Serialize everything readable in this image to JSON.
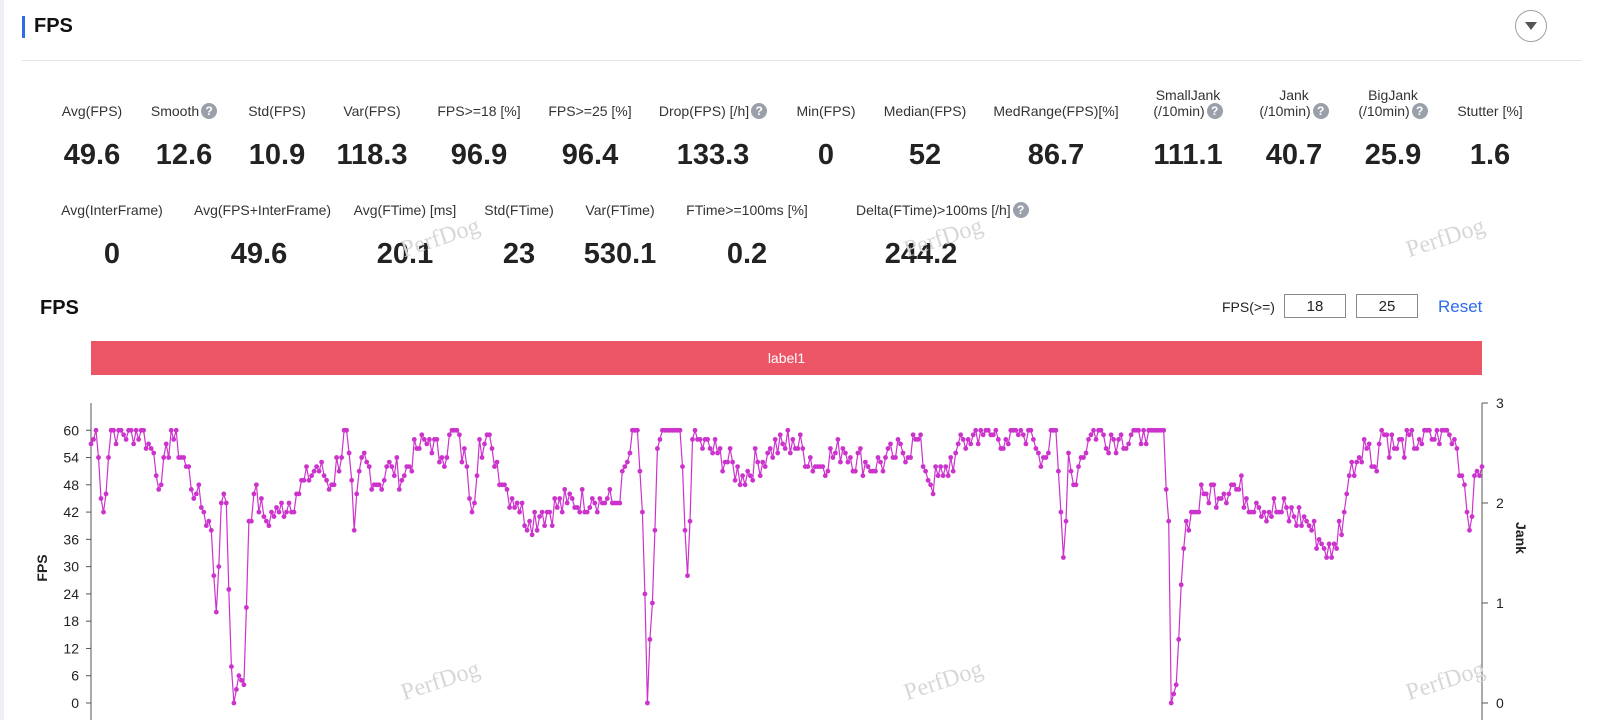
{
  "section": {
    "title": "FPS"
  },
  "metrics_row1": [
    {
      "label": "Avg(FPS)",
      "value": "49.6"
    },
    {
      "label": "Smooth",
      "value": "12.6",
      "help": true
    },
    {
      "label": "Std(FPS)",
      "value": "10.9"
    },
    {
      "label": "Var(FPS)",
      "value": "118.3"
    },
    {
      "label": "FPS>=18 [%]",
      "value": "96.9"
    },
    {
      "label": "FPS>=25 [%]",
      "value": "96.4"
    },
    {
      "label": "Drop(FPS) [/h]",
      "value": "133.3",
      "help": true
    },
    {
      "label": "Min(FPS)",
      "value": "0"
    },
    {
      "label": "Median(FPS)",
      "value": "52"
    },
    {
      "label": "MedRange(FPS)[%]",
      "value": "86.7"
    },
    {
      "label": "SmallJank",
      "label2": "(/10min)",
      "value": "111.1",
      "help": true
    },
    {
      "label": "Jank",
      "label2": "(/10min)",
      "value": "40.7",
      "help": true
    },
    {
      "label": "BigJank",
      "label2": "(/10min)",
      "value": "25.9",
      "help": true
    },
    {
      "label": "Stutter [%]",
      "value": "1.6"
    }
  ],
  "metrics_row2": [
    {
      "label": "Avg(InterFrame)",
      "value": "0"
    },
    {
      "label": "Avg(FPS+InterFrame)",
      "value": "49.6"
    },
    {
      "label": "Avg(FTime) [ms]",
      "value": "20.1"
    },
    {
      "label": "Std(FTime)",
      "value": "23"
    },
    {
      "label": "Var(FTime)",
      "value": "530.1"
    },
    {
      "label": "FTime>=100ms [%]",
      "value": "0.2"
    },
    {
      "label": "Delta(FTime)>100ms [/h]",
      "value": "244.2",
      "help": true
    }
  ],
  "help_glyph": "?",
  "watermark_text": "PerfDog",
  "chart_header": {
    "title": "FPS",
    "threshold_label": "FPS(>=)",
    "threshold_low": "18",
    "threshold_high": "25",
    "reset_label": "Reset",
    "label_bar": "label1",
    "label_bar_color": "#ec5566"
  },
  "chart_data": {
    "type": "line",
    "series_color": "#cc33cc",
    "y_left": {
      "label": "FPS",
      "ticks": [
        0,
        6,
        12,
        18,
        24,
        30,
        36,
        42,
        48,
        54,
        60
      ]
    },
    "y_right": {
      "label": "Jank",
      "ticks": [
        0,
        1,
        2,
        3
      ]
    },
    "keyframes": [
      [
        0,
        57
      ],
      [
        2,
        60
      ],
      [
        5,
        42
      ],
      [
        8,
        60
      ],
      [
        20,
        60
      ],
      [
        25,
        55
      ],
      [
        28,
        48
      ],
      [
        32,
        60
      ],
      [
        38,
        52
      ],
      [
        42,
        46
      ],
      [
        45,
        42
      ],
      [
        48,
        38
      ],
      [
        50,
        20
      ],
      [
        52,
        44
      ],
      [
        54,
        44
      ],
      [
        56,
        8
      ],
      [
        57,
        0
      ],
      [
        59,
        6
      ],
      [
        61,
        4
      ],
      [
        63,
        40
      ],
      [
        65,
        46
      ],
      [
        70,
        40
      ],
      [
        75,
        42
      ],
      [
        82,
        46
      ],
      [
        90,
        52
      ],
      [
        96,
        48
      ],
      [
        102,
        60
      ],
      [
        105,
        38
      ],
      [
        108,
        54
      ],
      [
        115,
        48
      ],
      [
        120,
        52
      ],
      [
        125,
        50
      ],
      [
        130,
        56
      ],
      [
        135,
        58
      ],
      [
        140,
        54
      ],
      [
        145,
        60
      ],
      [
        150,
        52
      ],
      [
        152,
        42
      ],
      [
        155,
        58
      ],
      [
        160,
        56
      ],
      [
        165,
        48
      ],
      [
        170,
        44
      ],
      [
        175,
        40
      ],
      [
        180,
        42
      ],
      [
        190,
        44
      ],
      [
        200,
        45
      ],
      [
        210,
        44
      ],
      [
        215,
        55
      ],
      [
        218,
        60
      ],
      [
        220,
        42
      ],
      [
        222,
        0
      ],
      [
        224,
        22
      ],
      [
        226,
        56
      ],
      [
        228,
        60
      ],
      [
        235,
        60
      ],
      [
        238,
        28
      ],
      [
        240,
        58
      ],
      [
        250,
        55
      ],
      [
        260,
        50
      ],
      [
        270,
        55
      ],
      [
        280,
        58
      ],
      [
        290,
        52
      ],
      [
        300,
        56
      ],
      [
        310,
        52
      ],
      [
        320,
        54
      ],
      [
        330,
        58
      ],
      [
        335,
        48
      ],
      [
        340,
        50
      ],
      [
        345,
        55
      ],
      [
        350,
        58
      ],
      [
        355,
        60
      ],
      [
        365,
        58
      ],
      [
        375,
        60
      ],
      [
        380,
        54
      ],
      [
        385,
        60
      ],
      [
        388,
        32
      ],
      [
        390,
        55
      ],
      [
        392,
        48
      ],
      [
        395,
        54
      ],
      [
        400,
        60
      ],
      [
        410,
        58
      ],
      [
        420,
        60
      ],
      [
        428,
        60
      ],
      [
        430,
        40
      ],
      [
        431,
        0
      ],
      [
        433,
        4
      ],
      [
        435,
        26
      ],
      [
        437,
        40
      ],
      [
        440,
        42
      ],
      [
        445,
        46
      ],
      [
        455,
        48
      ],
      [
        465,
        44
      ],
      [
        475,
        42
      ],
      [
        485,
        40
      ],
      [
        490,
        36
      ],
      [
        495,
        32
      ],
      [
        500,
        42
      ],
      [
        502,
        50
      ],
      [
        508,
        58
      ],
      [
        512,
        52
      ],
      [
        515,
        60
      ],
      [
        520,
        56
      ],
      [
        530,
        58
      ],
      [
        540,
        60
      ],
      [
        545,
        56
      ],
      [
        548,
        48
      ],
      [
        550,
        38
      ],
      [
        552,
        50
      ],
      [
        555,
        52
      ]
    ],
    "jitter_seed": 7,
    "x_max": 555,
    "y_max": 66
  }
}
